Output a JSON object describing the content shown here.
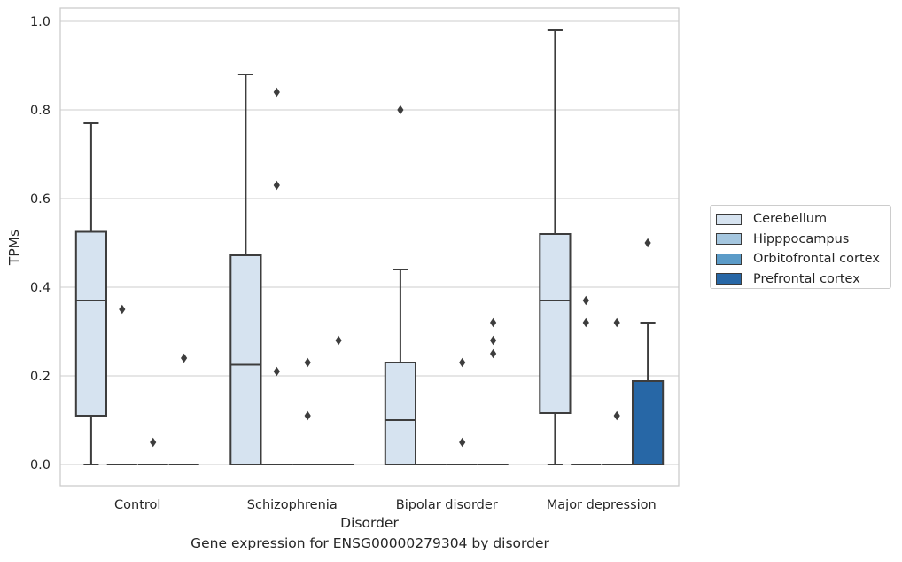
{
  "chart_data": {
    "type": "box",
    "xlabel": "Disorder",
    "ylabel": "TPMs",
    "caption": "Gene expression for ENSG00000279304 by disorder",
    "ylim": [
      -0.048,
      1.03
    ],
    "yticks": [
      0.0,
      0.2,
      0.4,
      0.6,
      0.8,
      1.0
    ],
    "ytick_labels": [
      "0.0",
      "0.2",
      "0.4",
      "0.6",
      "0.8",
      "1.0"
    ],
    "grid": true,
    "legend_position": "right",
    "categories": [
      "Control",
      "Schizophrenia",
      "Bipolar disorder",
      "Major depression"
    ],
    "series": [
      {
        "name": "Cerebellum",
        "color": "#d6e3f0",
        "boxes": [
          {
            "category": "Control",
            "min": 0.0,
            "q1": 0.11,
            "median": 0.37,
            "q3": 0.525,
            "max": 0.77,
            "outliers": []
          },
          {
            "category": "Schizophrenia",
            "min": 0.0,
            "q1": 0.0,
            "median": 0.225,
            "q3": 0.472,
            "max": 0.88,
            "outliers": []
          },
          {
            "category": "Bipolar disorder",
            "min": 0.0,
            "q1": 0.0,
            "median": 0.1,
            "q3": 0.23,
            "max": 0.44,
            "outliers": [
              0.8
            ]
          },
          {
            "category": "Major depression",
            "min": 0.0,
            "q1": 0.116,
            "median": 0.37,
            "q3": 0.52,
            "max": 0.98,
            "outliers": []
          }
        ]
      },
      {
        "name": "Hipppocampus",
        "color": "#a4c6df",
        "boxes": [
          {
            "category": "Control",
            "min": 0.0,
            "q1": 0.0,
            "median": 0.0,
            "q3": 0.0,
            "max": 0.0,
            "outliers": [
              0.35
            ]
          },
          {
            "category": "Schizophrenia",
            "min": 0.0,
            "q1": 0.0,
            "median": 0.0,
            "q3": 0.0,
            "max": 0.0,
            "outliers": [
              0.84,
              0.63,
              0.21
            ]
          },
          {
            "category": "Bipolar disorder",
            "min": 0.0,
            "q1": 0.0,
            "median": 0.0,
            "q3": 0.0,
            "max": 0.0,
            "outliers": []
          },
          {
            "category": "Major depression",
            "min": 0.0,
            "q1": 0.0,
            "median": 0.0,
            "q3": 0.0,
            "max": 0.0,
            "outliers": [
              0.37,
              0.32
            ]
          }
        ]
      },
      {
        "name": "Orbitofrontal cortex",
        "color": "#5b9bc8",
        "boxes": [
          {
            "category": "Control",
            "min": 0.0,
            "q1": 0.0,
            "median": 0.0,
            "q3": 0.0,
            "max": 0.0,
            "outliers": [
              0.05
            ]
          },
          {
            "category": "Schizophrenia",
            "min": 0.0,
            "q1": 0.0,
            "median": 0.0,
            "q3": 0.0,
            "max": 0.0,
            "outliers": [
              0.23,
              0.11
            ]
          },
          {
            "category": "Bipolar disorder",
            "min": 0.0,
            "q1": 0.0,
            "median": 0.0,
            "q3": 0.0,
            "max": 0.0,
            "outliers": [
              0.23,
              0.05
            ]
          },
          {
            "category": "Major depression",
            "min": 0.0,
            "q1": 0.0,
            "median": 0.0,
            "q3": 0.0,
            "max": 0.0,
            "outliers": [
              0.32,
              0.11
            ]
          }
        ]
      },
      {
        "name": "Prefrontal cortex",
        "color": "#2767a6",
        "boxes": [
          {
            "category": "Control",
            "min": 0.0,
            "q1": 0.0,
            "median": 0.0,
            "q3": 0.0,
            "max": 0.0,
            "outliers": [
              0.24
            ]
          },
          {
            "category": "Schizophrenia",
            "min": 0.0,
            "q1": 0.0,
            "median": 0.0,
            "q3": 0.0,
            "max": 0.0,
            "outliers": [
              0.28
            ]
          },
          {
            "category": "Bipolar disorder",
            "min": 0.0,
            "q1": 0.0,
            "median": 0.0,
            "q3": 0.0,
            "max": 0.0,
            "outliers": [
              0.32,
              0.28,
              0.25
            ]
          },
          {
            "category": "Major depression",
            "min": 0.0,
            "q1": 0.0,
            "median": 0.0,
            "q3": 0.188,
            "max": 0.32,
            "outliers": [
              0.5
            ]
          }
        ]
      }
    ]
  }
}
